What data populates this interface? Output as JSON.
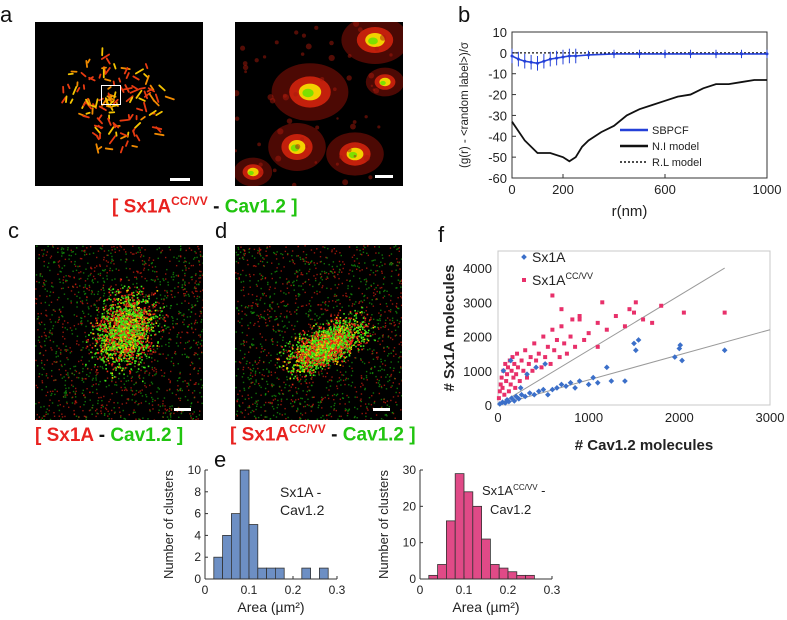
{
  "panels": {
    "a": {
      "label": "a",
      "caption": {
        "bracket_open": "[",
        "protein1": "Sx1A",
        "protein1_sup": "CC/VV",
        "dash": "-",
        "protein2": "Cav1.2",
        "bracket_close": "]"
      }
    },
    "b": {
      "label": "b"
    },
    "c": {
      "label": "c",
      "caption": {
        "bracket_open": "[",
        "protein1": "Sx1A",
        "dash": "-",
        "protein2": "Cav1.2",
        "bracket_close": "]"
      }
    },
    "d": {
      "label": "d",
      "caption": {
        "bracket_open": "[",
        "protein1": "Sx1A",
        "protein1_sup": "CC/VV",
        "dash": "-",
        "protein2": "Cav1.2",
        "bracket_close": "]"
      }
    },
    "e": {
      "label": "e"
    },
    "f": {
      "label": "f"
    }
  },
  "colors": {
    "red": "#e8221f",
    "green": "#21c40f",
    "blue": "#3b6fc9",
    "pink": "#e8306a",
    "bar_blue": "#6d8fc4",
    "bar_pink": "#e04a87"
  },
  "chart_data": [
    {
      "id": "b",
      "type": "line",
      "xlabel": "r(nm)",
      "ylabel": "(g(r) - <random label>)/σ",
      "xlim": [
        0,
        1000
      ],
      "ylim": [
        -60,
        10
      ],
      "xticks": [
        0,
        200,
        600,
        1000
      ],
      "yticks": [
        10,
        0,
        -10,
        -20,
        -30,
        -40,
        -50,
        -60
      ],
      "legend": [
        "SBPCF",
        "N.I model",
        "R.L model"
      ],
      "series": [
        {
          "name": "SBPCF",
          "x": [
            0,
            25,
            50,
            75,
            100,
            125,
            150,
            175,
            200,
            225,
            250,
            300,
            400,
            500,
            600,
            700,
            800,
            900,
            1000
          ],
          "y": [
            -1.5,
            -3,
            -4,
            -4.5,
            -5,
            -4,
            -3,
            -2.5,
            -2,
            -1.5,
            -1.5,
            -1,
            -0.5,
            -0.5,
            -0.5,
            -0.5,
            -0.5,
            -0.5,
            -0.5
          ]
        },
        {
          "name": "N.I model",
          "x": [
            0,
            50,
            100,
            150,
            200,
            225,
            250,
            275,
            300,
            350,
            400,
            450,
            500,
            550,
            600,
            650,
            700,
            750,
            800,
            850,
            900,
            950,
            1000
          ],
          "y": [
            -33,
            -42,
            -48,
            -48,
            -50,
            -52,
            -50,
            -45,
            -42,
            -38,
            -35,
            -30,
            -27,
            -25,
            -23,
            -21,
            -20,
            -17,
            -15,
            -15,
            -14,
            -13,
            -13
          ]
        },
        {
          "name": "R.L model",
          "x": [
            0,
            1000
          ],
          "y": [
            0,
            0
          ]
        }
      ]
    },
    {
      "id": "f",
      "type": "scatter",
      "xlabel": "# Cav1.2 molecules",
      "ylabel": "# Sx1A molecules",
      "xlim": [
        0,
        3000
      ],
      "ylim": [
        0,
        4500
      ],
      "xticks": [
        0,
        1000,
        2000,
        3000
      ],
      "yticks": [
        0,
        1000,
        2000,
        3000,
        4000
      ],
      "legend": [
        {
          "name": "Sx1A",
          "sup": ""
        },
        {
          "name": "Sx1A",
          "sup": "CC/VV"
        }
      ],
      "series": [
        {
          "name": "Sx1A",
          "x": [
            20,
            50,
            80,
            100,
            120,
            150,
            180,
            200,
            230,
            260,
            300,
            350,
            400,
            420,
            450,
            500,
            520,
            550,
            600,
            650,
            700,
            750,
            800,
            850,
            900,
            1000,
            1050,
            1100,
            1200,
            1250,
            1400,
            1500,
            1520,
            1550,
            1950,
            2000,
            2010,
            2030,
            2500,
            60,
            140,
            250,
            320
          ],
          "y": [
            30,
            80,
            60,
            150,
            100,
            200,
            120,
            250,
            180,
            300,
            250,
            350,
            300,
            1100,
            400,
            450,
            1200,
            300,
            450,
            500,
            600,
            550,
            650,
            500,
            700,
            600,
            800,
            650,
            1100,
            700,
            700,
            1800,
            1600,
            1900,
            1400,
            1650,
            1750,
            1300,
            1600,
            1000,
            1300,
            500,
            900
          ]
        },
        {
          "name": "Sx1A CC/VV",
          "x": [
            10,
            20,
            30,
            40,
            50,
            60,
            70,
            80,
            90,
            100,
            110,
            120,
            130,
            140,
            150,
            160,
            170,
            180,
            190,
            200,
            210,
            220,
            240,
            260,
            280,
            300,
            320,
            340,
            360,
            380,
            400,
            420,
            450,
            480,
            500,
            520,
            550,
            580,
            600,
            620,
            650,
            680,
            700,
            730,
            760,
            800,
            820,
            850,
            900,
            950,
            1000,
            1100,
            1150,
            1200,
            1300,
            1400,
            1450,
            1500,
            1520,
            1600,
            1700,
            1800,
            2050,
            2500,
            700,
            900,
            600,
            1100
          ],
          "y": [
            200,
            400,
            600,
            800,
            500,
            1000,
            300,
            1200,
            700,
            900,
            1100,
            400,
            1300,
            600,
            1000,
            1400,
            800,
            1200,
            500,
            900,
            1500,
            1100,
            700,
            1300,
            1000,
            1600,
            800,
            1200,
            1400,
            1000,
            1800,
            1300,
            1500,
            1100,
            2000,
            1400,
            1700,
            1200,
            2200,
            1600,
            1900,
            1400,
            2300,
            1800,
            1500,
            2000,
            2500,
            1700,
            2600,
            1900,
            2100,
            2400,
            3000,
            2200,
            2600,
            2300,
            2800,
            2700,
            3000,
            2500,
            2400,
            2900,
            2700,
            2700,
            2800,
            2500,
            3200,
            1700
          ]
        }
      ],
      "fit_lines": [
        {
          "name": "Sx1A fit",
          "x": [
            0,
            3000
          ],
          "y": [
            0,
            2200
          ]
        },
        {
          "name": "Sx1A CC/VV fit",
          "x": [
            0,
            2500
          ],
          "y": [
            0,
            4000
          ]
        }
      ]
    },
    {
      "id": "e1",
      "type": "bar",
      "title": "Sx1A - Cav1.2",
      "xlabel": "Area (µm²)",
      "ylabel": "Number  of clusters",
      "xlim": [
        0,
        0.3
      ],
      "ylim": [
        0,
        10
      ],
      "xticks": [
        0,
        0.1,
        0.2,
        0.3
      ],
      "yticks": [
        0,
        2,
        4,
        6,
        8,
        10
      ],
      "bin_edges": [
        0.02,
        0.04,
        0.06,
        0.08,
        0.1,
        0.12,
        0.14,
        0.16,
        0.18,
        0.2,
        0.22,
        0.24,
        0.26,
        0.28
      ],
      "values": [
        2,
        4,
        6,
        10,
        5,
        1,
        1,
        1,
        0,
        0,
        1,
        0,
        1
      ]
    },
    {
      "id": "e2",
      "type": "bar",
      "title": "Sx1A CC/VV - Cav1.2",
      "xlabel": "Area (µm²)",
      "ylabel": "Number  of clusters",
      "xlim": [
        0,
        0.3
      ],
      "ylim": [
        0,
        30
      ],
      "xticks": [
        0,
        0.1,
        0.2,
        0.3
      ],
      "yticks": [
        0,
        10,
        20,
        30
      ],
      "bin_edges": [
        0.02,
        0.04,
        0.06,
        0.08,
        0.1,
        0.12,
        0.14,
        0.16,
        0.18,
        0.2,
        0.22,
        0.24,
        0.26,
        0.28
      ],
      "values": [
        1,
        4,
        16,
        29,
        24,
        20,
        11,
        4,
        3,
        2,
        1,
        1,
        0
      ]
    }
  ]
}
